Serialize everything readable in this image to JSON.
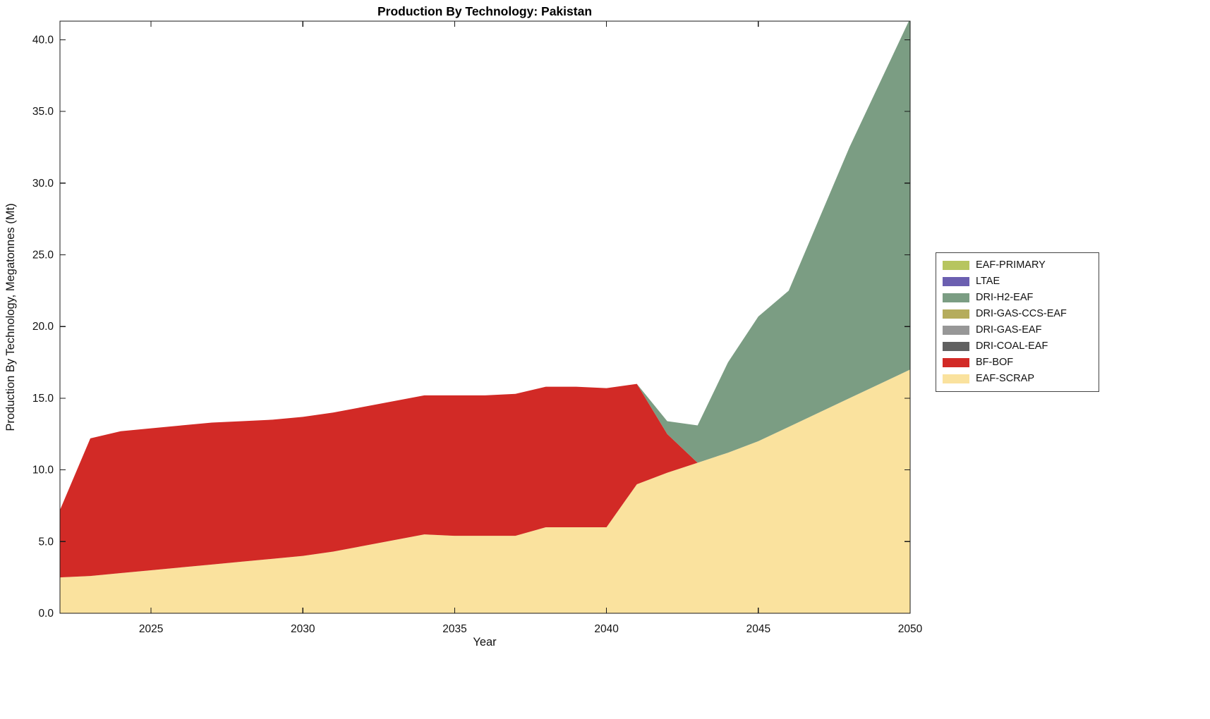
{
  "figure": {
    "title": "Production By Technology: Pakistan",
    "xlabel": "Year",
    "ylabel": "Production By Technology, Megatonnes (Mt)"
  },
  "chart_data": {
    "type": "area",
    "stacked": true,
    "title": "Production By Technology: Pakistan",
    "xlabel": "Year",
    "ylabel": "Production By Technology, Megatonnes (Mt)",
    "xlim": [
      2022,
      2050
    ],
    "ylim": [
      0,
      41.3
    ],
    "grid": false,
    "xticks": {
      "values": [
        2025,
        2030,
        2035,
        2040,
        2045,
        2050
      ],
      "labels": [
        "2025",
        "2030",
        "2035",
        "2040",
        "2045",
        "2050"
      ]
    },
    "yticks": {
      "values": [
        0,
        5,
        10,
        15,
        20,
        25,
        30,
        35,
        40
      ],
      "labels": [
        "0.0",
        "5.0",
        "10.0",
        "15.0",
        "20.0",
        "25.0",
        "30.0",
        "35.0",
        "40.0"
      ]
    },
    "x": [
      2022,
      2023,
      2024,
      2025,
      2026,
      2027,
      2028,
      2029,
      2030,
      2031,
      2032,
      2033,
      2034,
      2035,
      2036,
      2037,
      2038,
      2039,
      2040,
      2041,
      2042,
      2043,
      2044,
      2045,
      2046,
      2047,
      2048,
      2049,
      2050
    ],
    "series": [
      {
        "name": "EAF-SCRAP",
        "color": "#FAE29E",
        "values": [
          2.5,
          2.6,
          2.8,
          3.0,
          3.2,
          3.4,
          3.6,
          3.8,
          4.0,
          4.3,
          4.7,
          5.1,
          5.5,
          5.4,
          5.4,
          5.4,
          6.0,
          6.0,
          6.0,
          9.0,
          9.8,
          10.5,
          11.2,
          12.0,
          13.0,
          14.0,
          15.0,
          16.0,
          17.0
        ]
      },
      {
        "name": "BF-BOF",
        "color": "#D22A26",
        "values": [
          4.7,
          9.6,
          9.9,
          9.9,
          9.9,
          9.9,
          9.8,
          9.7,
          9.7,
          9.7,
          9.7,
          9.7,
          9.7,
          9.8,
          9.8,
          9.9,
          9.8,
          9.8,
          9.7,
          7.0,
          2.7,
          0,
          0,
          0,
          0,
          0,
          0,
          0,
          0
        ]
      },
      {
        "name": "DRI-COAL-EAF",
        "color": "#606060",
        "values": [
          0,
          0,
          0,
          0,
          0,
          0,
          0,
          0,
          0,
          0,
          0,
          0,
          0,
          0,
          0,
          0,
          0,
          0,
          0,
          0,
          0,
          0,
          0,
          0,
          0,
          0,
          0,
          0,
          0
        ]
      },
      {
        "name": "DRI-GAS-EAF",
        "color": "#979797",
        "values": [
          0,
          0,
          0,
          0,
          0,
          0,
          0,
          0,
          0,
          0,
          0,
          0,
          0,
          0,
          0,
          0,
          0,
          0,
          0,
          0,
          0,
          0,
          0,
          0,
          0,
          0,
          0,
          0,
          0
        ]
      },
      {
        "name": "DRI-GAS-CCS-EAF",
        "color": "#B5AC5C",
        "values": [
          0,
          0,
          0,
          0,
          0,
          0,
          0,
          0,
          0,
          0,
          0,
          0,
          0,
          0,
          0,
          0,
          0,
          0,
          0,
          0,
          0,
          0,
          0,
          0,
          0,
          0,
          0,
          0,
          0
        ]
      },
      {
        "name": "DRI-H2-EAF",
        "color": "#7B9D83",
        "values": [
          0,
          0,
          0,
          0,
          0,
          0,
          0,
          0,
          0,
          0,
          0,
          0,
          0,
          0,
          0,
          0,
          0,
          0,
          0,
          0,
          0.9,
          2.6,
          6.3,
          8.7,
          9.5,
          13.5,
          17.5,
          21.0,
          24.5
        ]
      },
      {
        "name": "LTAE",
        "color": "#6B5FB0",
        "values": [
          0,
          0,
          0,
          0,
          0,
          0,
          0,
          0,
          0,
          0,
          0,
          0,
          0,
          0,
          0,
          0,
          0,
          0,
          0,
          0,
          0,
          0,
          0,
          0,
          0,
          0,
          0,
          0,
          0
        ]
      },
      {
        "name": "EAF-PRIMARY",
        "color": "#B7C55F",
        "values": [
          0,
          0,
          0,
          0,
          0,
          0,
          0,
          0,
          0,
          0,
          0,
          0,
          0,
          0,
          0,
          0,
          0,
          0,
          0,
          0,
          0,
          0,
          0,
          0,
          0,
          0,
          0,
          0,
          0
        ]
      }
    ],
    "legend": {
      "position": "right-outside",
      "entries": [
        {
          "label": "EAF-PRIMARY",
          "color": "#B7C55F"
        },
        {
          "label": "LTAE",
          "color": "#6B5FB0"
        },
        {
          "label": "DRI-H2-EAF",
          "color": "#7B9D83"
        },
        {
          "label": "DRI-GAS-CCS-EAF",
          "color": "#B5AC5C"
        },
        {
          "label": "DRI-GAS-EAF",
          "color": "#979797"
        },
        {
          "label": "DRI-COAL-EAF",
          "color": "#606060"
        },
        {
          "label": "BF-BOF",
          "color": "#D22A26"
        },
        {
          "label": "EAF-SCRAP",
          "color": "#FAE29E"
        }
      ]
    }
  }
}
